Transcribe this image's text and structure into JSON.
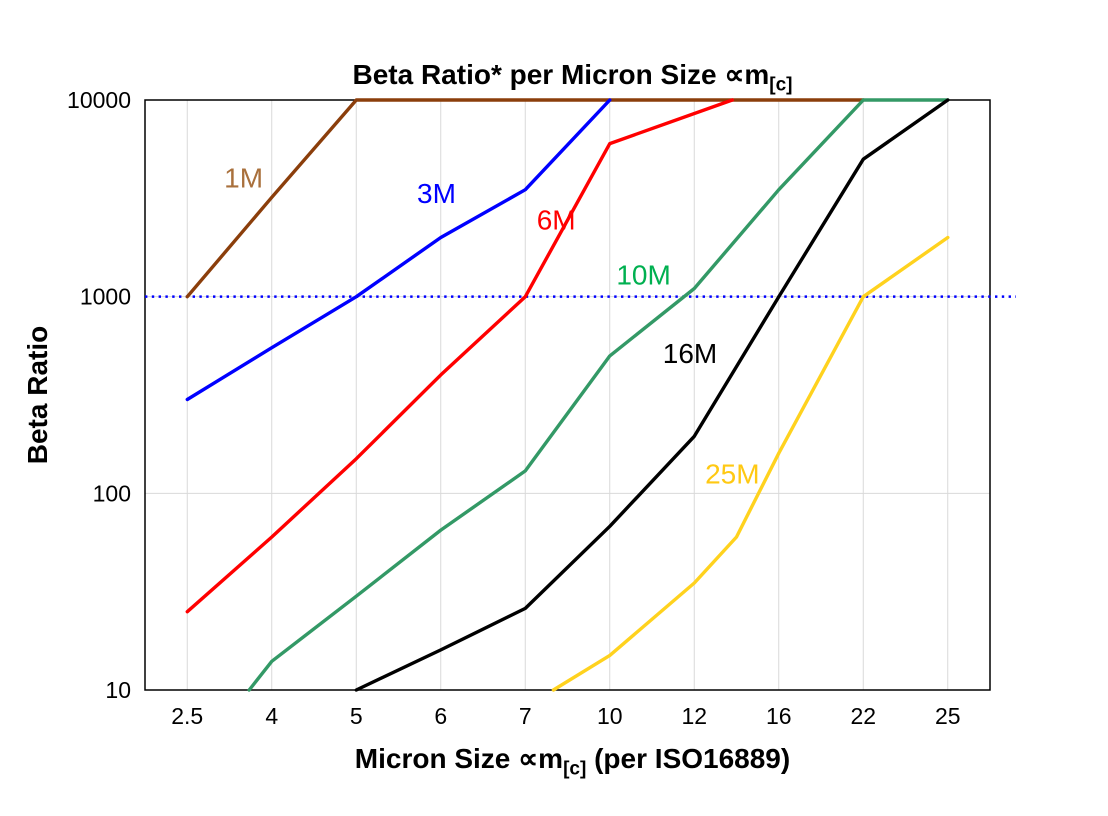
{
  "chart_data": {
    "type": "line",
    "title": "Beta Ratio* per Micron Size ∝m[c]",
    "title_main": "Beta Ratio* per Micron Size ∝m",
    "title_sub": "[c]",
    "xlabel": "Micron Size ∝m[c] (per ISO16889)",
    "xlabel_main": "Micron Size ∝m",
    "xlabel_sub": "[c]",
    "xlabel_suffix": " (per ISO16889)",
    "ylabel": "Beta Ratio",
    "x_categories": [
      2.5,
      4,
      5,
      6,
      7,
      10,
      12,
      16,
      22,
      25
    ],
    "x_tick_labels": [
      "2.5",
      "4",
      "5",
      "6",
      "7",
      "10",
      "12",
      "16",
      "22",
      "25"
    ],
    "y_scale": "log",
    "ylim": [
      10,
      10000
    ],
    "y_ticks": [
      10,
      100,
      1000,
      10000
    ],
    "y_tick_labels": [
      "10",
      "100",
      "1000",
      "10000"
    ],
    "grid": {
      "vertical": true,
      "horizontal": true,
      "color": "#d9d9d9"
    },
    "reference_line": {
      "y": 1000,
      "color": "#0000ff",
      "style": "dotted"
    },
    "series": [
      {
        "name": "1M",
        "color": "#8B3E0B",
        "label_color": "#A9703C",
        "label_pos": [
          3.5,
          3600
        ],
        "points": [
          [
            2.5,
            1000
          ],
          [
            4,
            3200
          ],
          [
            5,
            10000
          ],
          [
            22,
            10000
          ]
        ]
      },
      {
        "name": "3M",
        "color": "#0000FF",
        "label_color": "#0000FF",
        "label_pos": [
          5.95,
          3000
        ],
        "points": [
          [
            2.5,
            300
          ],
          [
            4,
            550
          ],
          [
            5,
            1000
          ],
          [
            6,
            2000
          ],
          [
            7,
            3500
          ],
          [
            10,
            10000
          ]
        ]
      },
      {
        "name": "6M",
        "color": "#FF0000",
        "label_color": "#FF0000",
        "label_pos": [
          8.1,
          2200
        ],
        "points": [
          [
            2.5,
            25
          ],
          [
            4,
            60
          ],
          [
            5,
            150
          ],
          [
            6,
            400
          ],
          [
            7,
            1000
          ],
          [
            10,
            6000
          ],
          [
            13.8,
            10000
          ]
        ]
      },
      {
        "name": "10M",
        "color": "#339966",
        "label_color": "#00B050",
        "label_pos": [
          10.8,
          1150
        ],
        "points": [
          [
            3.6,
            10
          ],
          [
            4,
            14
          ],
          [
            5,
            30
          ],
          [
            6,
            65
          ],
          [
            7,
            130
          ],
          [
            10,
            500
          ],
          [
            12,
            1100
          ],
          [
            16,
            3500
          ],
          [
            22,
            10000
          ],
          [
            25,
            10000
          ]
        ]
      },
      {
        "name": "16M",
        "color": "#000000",
        "label_color": "#000000",
        "label_pos": [
          11.9,
          460
        ],
        "points": [
          [
            5,
            10
          ],
          [
            6,
            16
          ],
          [
            7,
            26
          ],
          [
            10,
            68
          ],
          [
            12,
            195
          ],
          [
            16,
            1000
          ],
          [
            22,
            5000
          ],
          [
            25,
            10000
          ]
        ]
      },
      {
        "name": "25M",
        "color": "#FFD21E",
        "label_color": "#FFC913",
        "label_pos": [
          13.8,
          112
        ],
        "points": [
          [
            8,
            10
          ],
          [
            10,
            15
          ],
          [
            12,
            35
          ],
          [
            14,
            60
          ],
          [
            16,
            160
          ],
          [
            22,
            1000
          ],
          [
            25,
            2000
          ]
        ]
      }
    ]
  }
}
